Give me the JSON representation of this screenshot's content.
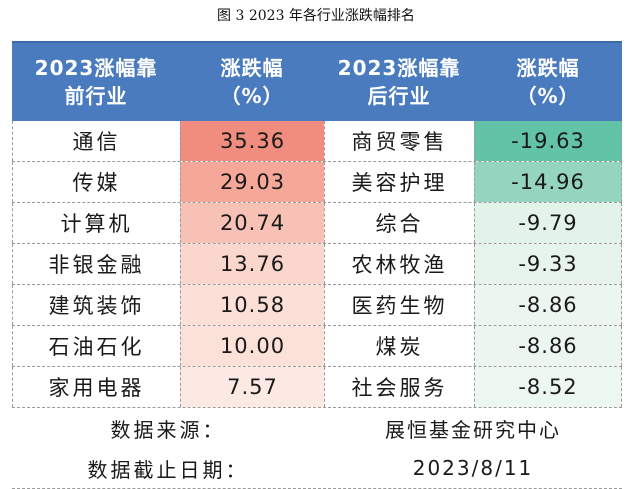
{
  "caption": "图 3   2023 年各行业涨跌幅排名",
  "headers": {
    "top_industry": [
      "2023涨幅靠",
      "前行业"
    ],
    "top_change": [
      "涨跌幅",
      "（%）"
    ],
    "bottom_industry": [
      "2023涨幅靠",
      "后行业"
    ],
    "bottom_change": [
      "涨跌幅",
      "（%）"
    ]
  },
  "rows": [
    {
      "top_name": "通信",
      "top_value": "35.36",
      "top_color": "#f08d7e",
      "bottom_name": "商贸零售",
      "bottom_value": "-19.63",
      "bottom_color": "#63c3a6"
    },
    {
      "top_name": "传媒",
      "top_value": "29.03",
      "top_color": "#f5a898",
      "bottom_name": "美容护理",
      "bottom_value": "-14.96",
      "bottom_color": "#95d5bf"
    },
    {
      "top_name": "计算机",
      "top_value": "20.74",
      "top_color": "#f8c1b5",
      "bottom_name": "综合",
      "bottom_value": "-9.79",
      "bottom_color": "#e3f3e9"
    },
    {
      "top_name": "非银金融",
      "top_value": "13.76",
      "top_color": "#fbd6cc",
      "bottom_name": "农林牧渔",
      "bottom_value": "-9.33",
      "bottom_color": "#e6f4ec"
    },
    {
      "top_name": "建筑装饰",
      "top_value": "10.58",
      "top_color": "#fcdfd6",
      "bottom_name": "医药生物",
      "bottom_value": "-8.86",
      "bottom_color": "#eaf6ef"
    },
    {
      "top_name": "石油石化",
      "top_value": "10.00",
      "top_color": "#fce1d9",
      "bottom_name": "煤炭",
      "bottom_value": "-8.86",
      "bottom_color": "#eaf6ef"
    },
    {
      "top_name": "家用电器",
      "top_value": "7.57",
      "top_color": "#fde9e3",
      "bottom_name": "社会服务",
      "bottom_value": "-8.52",
      "bottom_color": "#edf7f1"
    }
  ],
  "footer": {
    "source_label": "数据来源：",
    "source_value": "展恒基金研究中心",
    "date_label": "数据截止日期：",
    "date_value": "2023/8/11"
  }
}
